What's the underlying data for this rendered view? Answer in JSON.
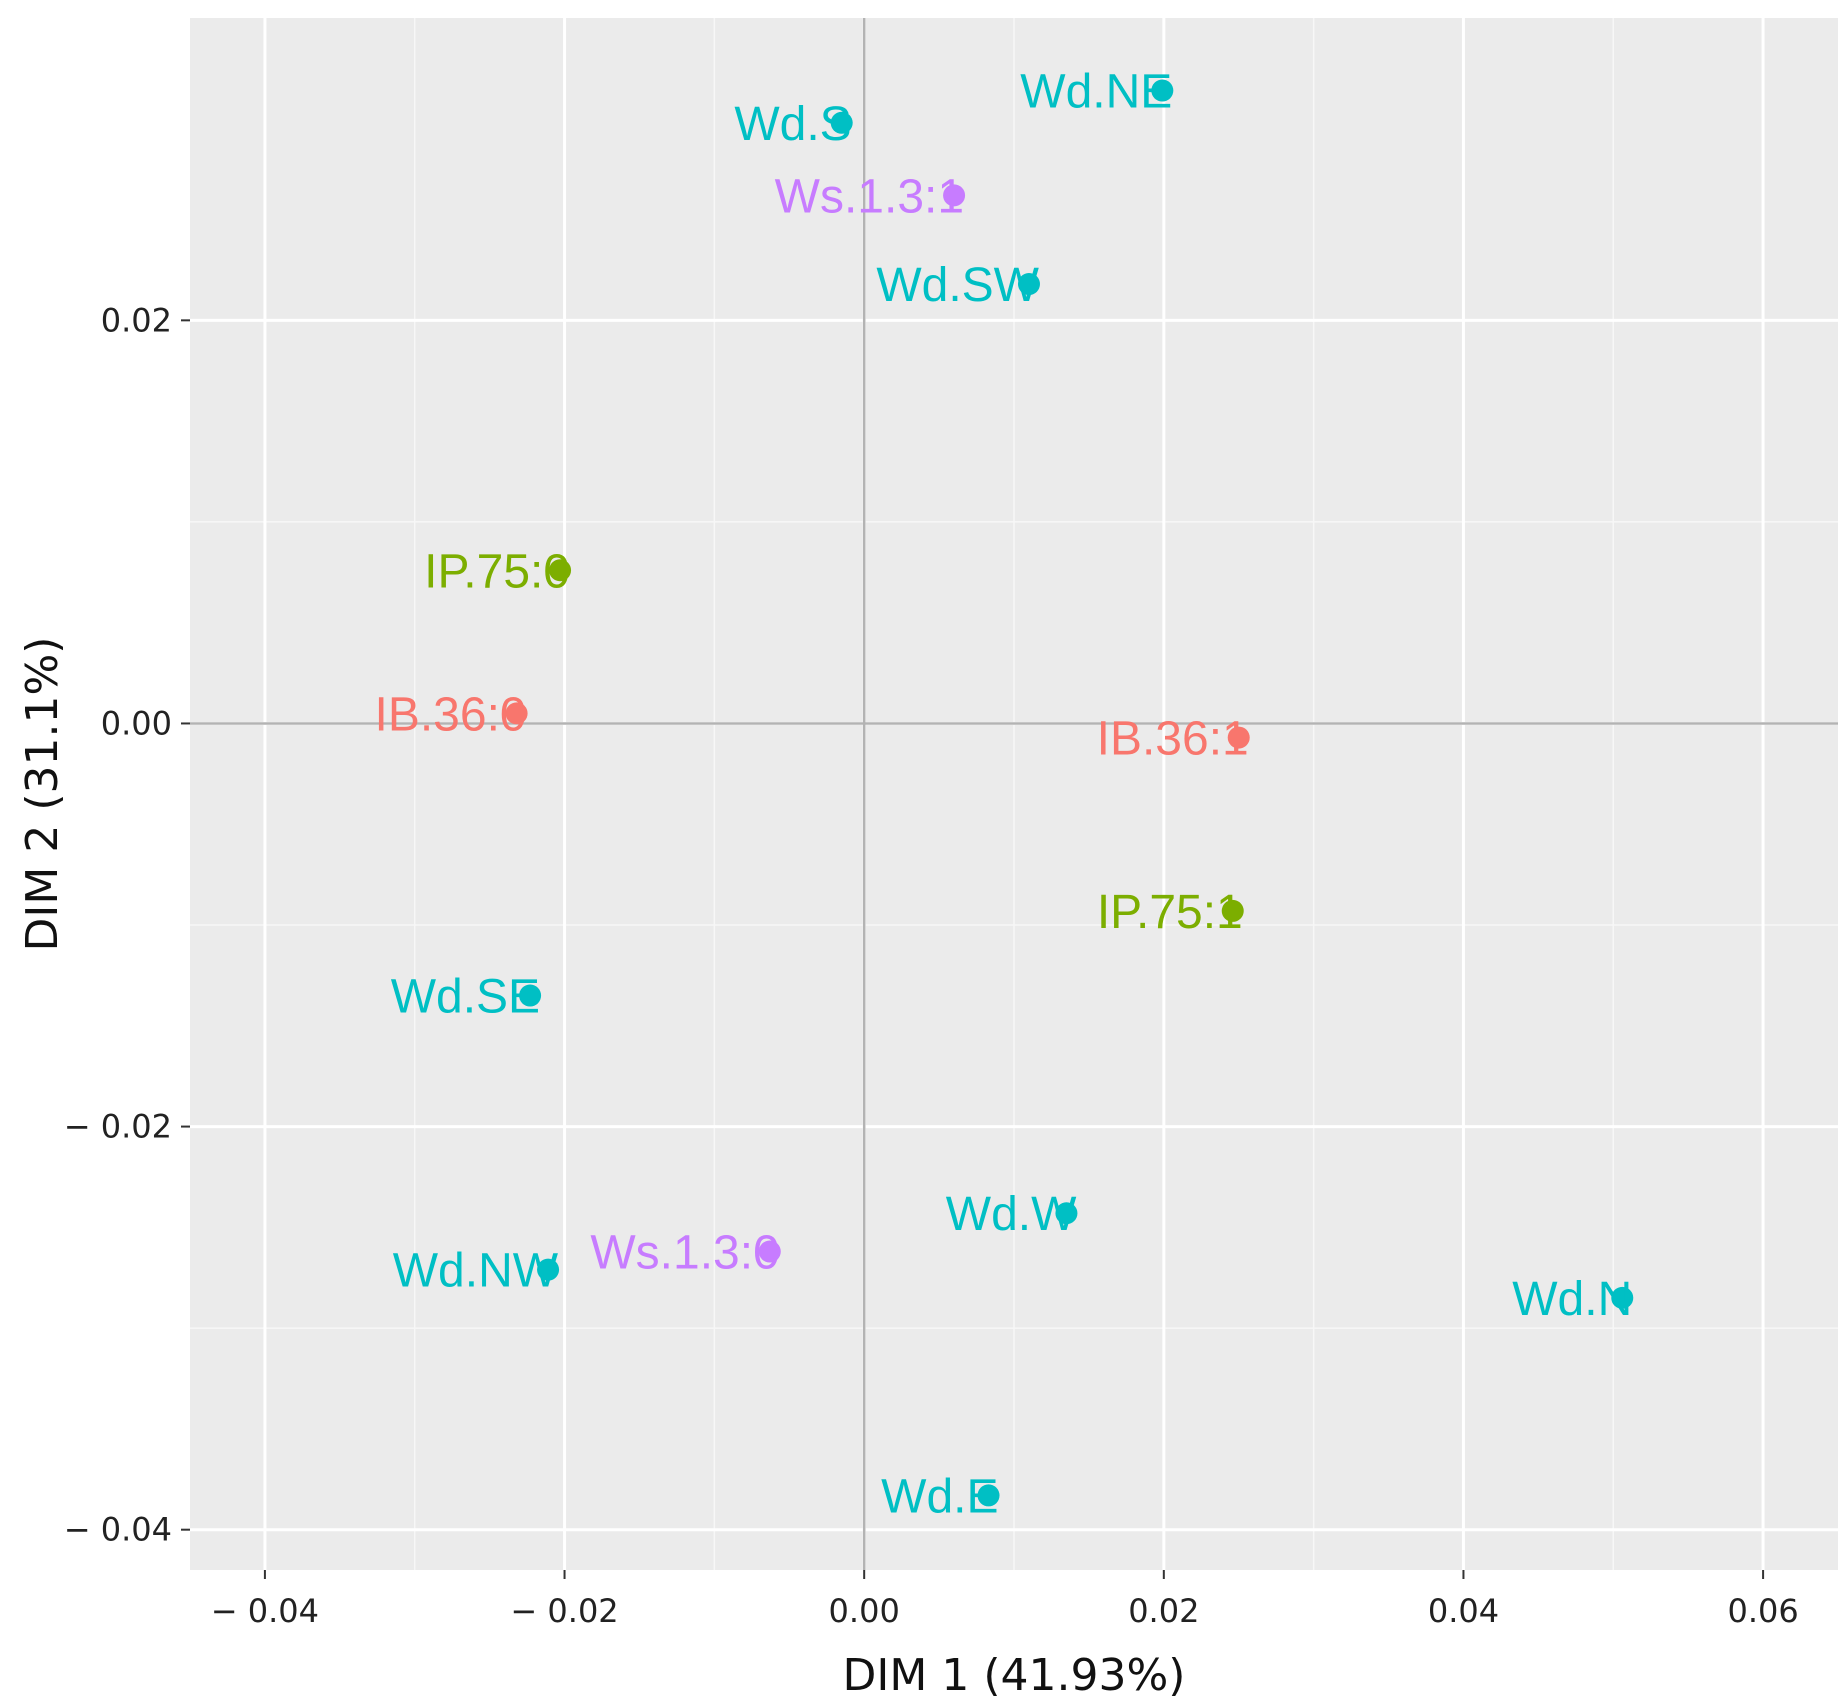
{
  "chart_data": {
    "type": "scatter",
    "title": "",
    "xlabel": "DIM 1 (41.93%)",
    "ylabel": "DIM 2 (31.1%)",
    "xlim": [
      -0.045,
      0.065
    ],
    "ylim": [
      -0.042,
      0.035
    ],
    "grid": true,
    "x_ticks": [
      -0.04,
      -0.02,
      0.0,
      0.02,
      0.04,
      0.06
    ],
    "x_tick_labels": [
      "− 0.04",
      "− 0.02",
      "0.00",
      "0.02",
      "0.04",
      "0.06"
    ],
    "y_ticks": [
      0.02,
      0.0,
      -0.02,
      -0.04
    ],
    "y_tick_labels": [
      "0.02",
      "0.00",
      "− 0.02",
      "− 0.04"
    ],
    "reference_lines": {
      "x": 0.0,
      "y": 0.0
    },
    "groups": [
      {
        "name": "Wd",
        "color": "#00BFC4"
      },
      {
        "name": "Ws",
        "color": "#C77CFF"
      },
      {
        "name": "IP",
        "color": "#7CAE00"
      },
      {
        "name": "IB",
        "color": "#F8766D"
      }
    ],
    "points": [
      {
        "label": "Wd.NE",
        "x": 0.0199,
        "y": 0.0314,
        "group": "Wd"
      },
      {
        "label": "Wd.S",
        "x": -0.0015,
        "y": 0.0298,
        "group": "Wd"
      },
      {
        "label": "Ws.1.3:1",
        "x": 0.006,
        "y": 0.0262,
        "group": "Ws"
      },
      {
        "label": "Wd.SW",
        "x": 0.011,
        "y": 0.0218,
        "group": "Wd"
      },
      {
        "label": "IP.75:0",
        "x": -0.0203,
        "y": 0.0076,
        "group": "IP"
      },
      {
        "label": "IB.36:0",
        "x": -0.0232,
        "y": 0.0005,
        "group": "IB"
      },
      {
        "label": "IB.36:1",
        "x": 0.025,
        "y": -0.0007,
        "group": "IB"
      },
      {
        "label": "IP.75:1",
        "x": 0.0246,
        "y": -0.0093,
        "group": "IP"
      },
      {
        "label": "Wd.SE",
        "x": -0.0223,
        "y": -0.0135,
        "group": "Wd"
      },
      {
        "label": "Wd.W",
        "x": 0.0135,
        "y": -0.0243,
        "group": "Wd"
      },
      {
        "label": "Ws.1.3:0",
        "x": -0.0063,
        "y": -0.0262,
        "group": "Ws"
      },
      {
        "label": "Wd.NW",
        "x": -0.0211,
        "y": -0.0271,
        "group": "Wd"
      },
      {
        "label": "Wd.N",
        "x": 0.0506,
        "y": -0.0285,
        "group": "Wd"
      },
      {
        "label": "Wd.E",
        "x": 0.0083,
        "y": -0.0383,
        "group": "Wd"
      }
    ]
  }
}
